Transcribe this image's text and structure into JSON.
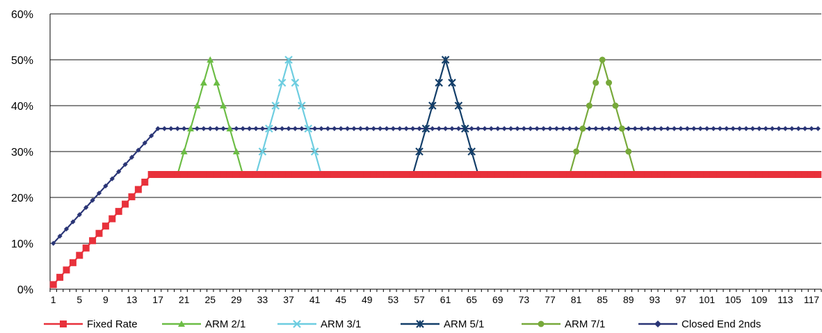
{
  "chart_data": {
    "type": "line",
    "title": "",
    "xlabel": "",
    "ylabel": "",
    "ylim": [
      0,
      60
    ],
    "y_ticks": [
      "0%",
      "10%",
      "20%",
      "30%",
      "40%",
      "50%",
      "60%"
    ],
    "x": {
      "start": 1,
      "end": 118
    },
    "x_ticks": [
      "1",
      "5",
      "9",
      "13",
      "17",
      "21",
      "25",
      "29",
      "33",
      "37",
      "41",
      "45",
      "49",
      "53",
      "57",
      "61",
      "65",
      "69",
      "73",
      "77",
      "81",
      "85",
      "89",
      "93",
      "97",
      "101",
      "105",
      "109",
      "113",
      "117"
    ],
    "grid": "horizontal",
    "legend": "bottom",
    "series": [
      {
        "name": "Fixed Rate",
        "color": "#e8313b",
        "marker": "square",
        "segments": [
          {
            "from": 1,
            "to": 15,
            "y_from": 1.0,
            "y_to": 23.33
          },
          {
            "from": 16,
            "to": 118,
            "y": 25
          }
        ]
      },
      {
        "name": "ARM 2/1",
        "color": "#6cbd45",
        "marker": "triangle",
        "segments": [
          {
            "from": 16,
            "to": 20,
            "y": 25
          },
          {
            "from": 20,
            "to": 25,
            "y_from": 25,
            "y_to": 50
          },
          {
            "from": 25,
            "to": 30,
            "y_from": 50,
            "y_to": 25
          },
          {
            "from": 30,
            "to": 118,
            "y": 25
          }
        ]
      },
      {
        "name": "ARM 3/1",
        "color": "#6dcde0",
        "marker": "x",
        "segments": [
          {
            "from": 16,
            "to": 32,
            "y": 25
          },
          {
            "from": 32,
            "to": 37,
            "y_from": 25,
            "y_to": 50
          },
          {
            "from": 37,
            "to": 42,
            "y_from": 50,
            "y_to": 25
          },
          {
            "from": 42,
            "to": 118,
            "y": 25
          }
        ]
      },
      {
        "name": "ARM 5/1",
        "color": "#133e69",
        "marker": "star",
        "segments": [
          {
            "from": 16,
            "to": 56,
            "y": 25
          },
          {
            "from": 56,
            "to": 61,
            "y_from": 25,
            "y_to": 50
          },
          {
            "from": 61,
            "to": 66,
            "y_from": 50,
            "y_to": 25
          },
          {
            "from": 66,
            "to": 118,
            "y": 25
          }
        ]
      },
      {
        "name": "ARM 7/1",
        "color": "#77a93a",
        "marker": "circle",
        "segments": [
          {
            "from": 16,
            "to": 80,
            "y": 25
          },
          {
            "from": 80,
            "to": 85,
            "y_from": 25,
            "y_to": 50
          },
          {
            "from": 85,
            "to": 90,
            "y_from": 50,
            "y_to": 25
          },
          {
            "from": 90,
            "to": 118,
            "y": 25
          }
        ]
      },
      {
        "name": "Closed End 2nds",
        "color": "#2a3576",
        "marker": "diamond",
        "segments": [
          {
            "from": 1,
            "to": 17,
            "y_from": 10,
            "y_to": 35
          },
          {
            "from": 17,
            "to": 118,
            "y": 35
          }
        ]
      }
    ]
  }
}
